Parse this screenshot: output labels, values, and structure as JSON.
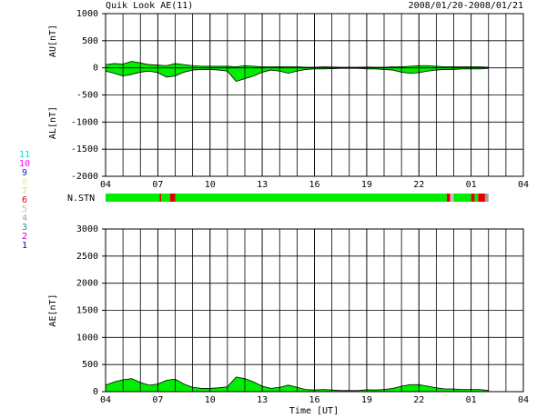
{
  "header": {
    "title": "Quik Look AE(11)",
    "date_range": "2008/01/20-2008/01/21",
    "xlabel": "Time [UT]"
  },
  "chart_data": [
    {
      "type": "area",
      "ylabel_upper": "AU[nT]",
      "ylabel_lower": "AL[nT]",
      "xlim": [
        0,
        24
      ],
      "xticks": [
        {
          "value": 0,
          "label": "04"
        },
        {
          "value": 3,
          "label": "07"
        },
        {
          "value": 6,
          "label": "10"
        },
        {
          "value": 9,
          "label": "13"
        },
        {
          "value": 12,
          "label": "16"
        },
        {
          "value": 15,
          "label": "19"
        },
        {
          "value": 18,
          "label": "22"
        },
        {
          "value": 21,
          "label": "01"
        },
        {
          "value": 24,
          "label": "04"
        }
      ],
      "xgrid_step": 1,
      "ylim": [
        -2000,
        1000
      ],
      "yticks": [
        1000,
        500,
        0,
        -500,
        -1000,
        -1500,
        -2000
      ],
      "grid": true,
      "x": [
        0,
        0.5,
        1,
        1.5,
        2,
        2.5,
        3,
        3.5,
        4,
        4.5,
        5,
        5.5,
        6,
        6.5,
        7,
        7.5,
        8,
        8.5,
        9,
        9.5,
        10,
        10.5,
        11,
        11.5,
        12,
        12.5,
        13,
        13.5,
        14,
        14.5,
        15,
        15.5,
        16,
        16.5,
        17,
        17.5,
        18,
        18.5,
        19,
        19.5,
        20,
        20.5,
        21,
        21.5,
        22
      ],
      "series": [
        {
          "color": "#00ee00",
          "values": [
            60,
            80,
            70,
            120,
            90,
            60,
            50,
            40,
            80,
            60,
            40,
            30,
            30,
            30,
            30,
            20,
            40,
            30,
            20,
            20,
            20,
            20,
            20,
            10,
            10,
            20,
            15,
            10,
            10,
            10,
            15,
            10,
            10,
            20,
            20,
            30,
            40,
            40,
            30,
            20,
            20,
            20,
            20,
            20,
            10
          ]
        },
        {
          "color": "#00ee00",
          "values": [
            -60,
            -100,
            -150,
            -120,
            -80,
            -60,
            -90,
            -170,
            -150,
            -80,
            -40,
            -30,
            -30,
            -40,
            -60,
            -250,
            -200,
            -150,
            -80,
            -40,
            -60,
            -100,
            -60,
            -30,
            -20,
            -20,
            -15,
            -10,
            -10,
            -10,
            -20,
            -20,
            -30,
            -40,
            -80,
            -100,
            -90,
            -60,
            -40,
            -30,
            -30,
            -20,
            -20,
            -20,
            -10
          ]
        }
      ]
    },
    {
      "type": "area",
      "ylabel": "AE[nT]",
      "xlim": [
        0,
        24
      ],
      "xticks": [
        {
          "value": 0,
          "label": "04"
        },
        {
          "value": 3,
          "label": "07"
        },
        {
          "value": 6,
          "label": "10"
        },
        {
          "value": 9,
          "label": "13"
        },
        {
          "value": 12,
          "label": "16"
        },
        {
          "value": 15,
          "label": "19"
        },
        {
          "value": 18,
          "label": "22"
        },
        {
          "value": 21,
          "label": "01"
        },
        {
          "value": 24,
          "label": "04"
        }
      ],
      "xgrid_step": 1,
      "ylim": [
        0,
        3000
      ],
      "yticks": [
        3000,
        2500,
        2000,
        1500,
        1000,
        500,
        0
      ],
      "grid": true,
      "x": [
        0,
        0.5,
        1,
        1.5,
        2,
        2.5,
        3,
        3.5,
        4,
        4.5,
        5,
        5.5,
        6,
        6.5,
        7,
        7.5,
        8,
        8.5,
        9,
        9.5,
        10,
        10.5,
        11,
        11.5,
        12,
        12.5,
        13,
        13.5,
        14,
        14.5,
        15,
        15.5,
        16,
        16.5,
        17,
        17.5,
        18,
        18.5,
        19,
        19.5,
        20,
        20.5,
        21,
        21.5,
        22
      ],
      "series": [
        {
          "color": "#00ee00",
          "values": [
            120,
            180,
            220,
            240,
            170,
            120,
            140,
            210,
            230,
            140,
            80,
            60,
            60,
            70,
            90,
            270,
            240,
            180,
            100,
            60,
            80,
            120,
            80,
            40,
            30,
            40,
            30,
            20,
            20,
            20,
            35,
            30,
            40,
            60,
            100,
            130,
            130,
            100,
            70,
            50,
            50,
            40,
            40,
            40,
            20
          ]
        }
      ]
    }
  ],
  "station_bar": {
    "label": "N.STN",
    "segments": [
      {
        "start": 0,
        "end": 3.1,
        "color": "#00ee00"
      },
      {
        "start": 3.1,
        "end": 3.2,
        "color": "#e00000"
      },
      {
        "start": 3.2,
        "end": 3.7,
        "color": "#00ee00"
      },
      {
        "start": 3.7,
        "end": 4.0,
        "color": "#e00000"
      },
      {
        "start": 4.0,
        "end": 19.6,
        "color": "#00ee00"
      },
      {
        "start": 19.6,
        "end": 19.8,
        "color": "#e00000"
      },
      {
        "start": 19.8,
        "end": 20.0,
        "color": "#c0c0c0"
      },
      {
        "start": 20.0,
        "end": 21.0,
        "color": "#00ee00"
      },
      {
        "start": 21.0,
        "end": 21.2,
        "color": "#e00000"
      },
      {
        "start": 21.2,
        "end": 21.4,
        "color": "#00ee00"
      },
      {
        "start": 21.4,
        "end": 21.8,
        "color": "#e00000"
      },
      {
        "start": 21.8,
        "end": 22.0,
        "color": "#a0a0a0"
      }
    ]
  },
  "station_legend": [
    {
      "label": "11",
      "color": "#00d8d8"
    },
    {
      "label": "10",
      "color": "#ff00ff"
    },
    {
      "label": "9",
      "color": "#2020c0"
    },
    {
      "label": "8",
      "color": "#f0f080"
    },
    {
      "label": "7",
      "color": "#c8e060"
    },
    {
      "label": "6",
      "color": "#e00000"
    },
    {
      "label": "5",
      "color": "#c0c0c0"
    },
    {
      "label": "4",
      "color": "#a8a8a8"
    },
    {
      "label": "3",
      "color": "#00a0a0"
    },
    {
      "label": "2",
      "color": "#c000c0"
    },
    {
      "label": "1",
      "color": "#0000e0"
    }
  ]
}
